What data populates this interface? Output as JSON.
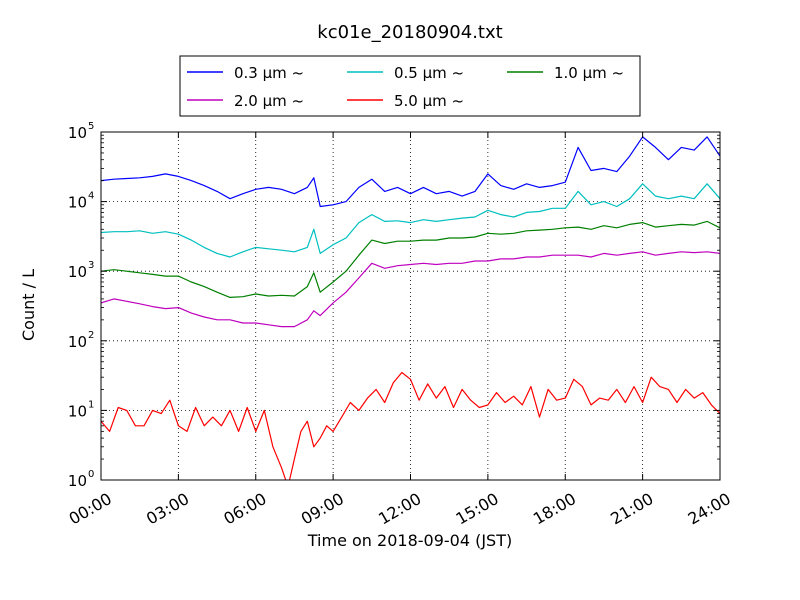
{
  "chart_data": {
    "type": "line",
    "title": "kc01e_20180904.txt",
    "xlabel": "Time on 2018-09-04 (JST)",
    "ylabel": "Count / L",
    "y_scale": "log",
    "ylim": [
      1,
      100000
    ],
    "xlim": [
      "00:00",
      "24:00"
    ],
    "grid": true,
    "legend_position": "top",
    "x_ticks": [
      "00:00",
      "03:00",
      "06:00",
      "09:00",
      "12:00",
      "15:00",
      "18:00",
      "21:00",
      "24:00"
    ],
    "y_ticks": [
      {
        "value": 1,
        "label": "10",
        "exp": "0"
      },
      {
        "value": 10,
        "label": "10",
        "exp": "1"
      },
      {
        "value": 100,
        "label": "10",
        "exp": "2"
      },
      {
        "value": 1000,
        "label": "10",
        "exp": "3"
      },
      {
        "value": 10000,
        "label": "10",
        "exp": "4"
      },
      {
        "value": 100000,
        "label": "10",
        "exp": "5"
      }
    ],
    "series": [
      {
        "name": "0.3 μm ~",
        "color": "#0000ff",
        "points": [
          [
            "00:00",
            20000
          ],
          [
            "00:30",
            21000
          ],
          [
            "01:00",
            21500
          ],
          [
            "01:30",
            22000
          ],
          [
            "02:00",
            23000
          ],
          [
            "02:30",
            25000
          ],
          [
            "03:00",
            23000
          ],
          [
            "03:30",
            20000
          ],
          [
            "04:00",
            17000
          ],
          [
            "04:30",
            14000
          ],
          [
            "05:00",
            11000
          ],
          [
            "05:30",
            13000
          ],
          [
            "06:00",
            15000
          ],
          [
            "06:30",
            16000
          ],
          [
            "07:00",
            15000
          ],
          [
            "07:30",
            13000
          ],
          [
            "08:00",
            16000
          ],
          [
            "08:15",
            22000
          ],
          [
            "08:30",
            8500
          ],
          [
            "09:00",
            9000
          ],
          [
            "09:30",
            10000
          ],
          [
            "10:00",
            16000
          ],
          [
            "10:30",
            21000
          ],
          [
            "11:00",
            14000
          ],
          [
            "11:30",
            16000
          ],
          [
            "12:00",
            13000
          ],
          [
            "12:30",
            16000
          ],
          [
            "13:00",
            13000
          ],
          [
            "13:30",
            14000
          ],
          [
            "14:00",
            12000
          ],
          [
            "14:30",
            14000
          ],
          [
            "15:00",
            25000
          ],
          [
            "15:30",
            17000
          ],
          [
            "16:00",
            15000
          ],
          [
            "16:30",
            18000
          ],
          [
            "17:00",
            16000
          ],
          [
            "17:30",
            17000
          ],
          [
            "18:00",
            19000
          ],
          [
            "18:30",
            60000
          ],
          [
            "19:00",
            28000
          ],
          [
            "19:30",
            30000
          ],
          [
            "20:00",
            27000
          ],
          [
            "20:30",
            45000
          ],
          [
            "21:00",
            85000
          ],
          [
            "21:30",
            60000
          ],
          [
            "22:00",
            40000
          ],
          [
            "22:30",
            60000
          ],
          [
            "23:00",
            55000
          ],
          [
            "23:30",
            85000
          ],
          [
            "24:00",
            45000
          ]
        ]
      },
      {
        "name": "0.5 μm ~",
        "color": "#00bfbf",
        "points": [
          [
            "00:00",
            3600
          ],
          [
            "00:30",
            3700
          ],
          [
            "01:00",
            3700
          ],
          [
            "01:30",
            3800
          ],
          [
            "02:00",
            3500
          ],
          [
            "02:30",
            3700
          ],
          [
            "03:00",
            3400
          ],
          [
            "03:30",
            2800
          ],
          [
            "04:00",
            2200
          ],
          [
            "04:30",
            1800
          ],
          [
            "05:00",
            1600
          ],
          [
            "05:30",
            1900
          ],
          [
            "06:00",
            2200
          ],
          [
            "06:30",
            2100
          ],
          [
            "07:00",
            2000
          ],
          [
            "07:30",
            1900
          ],
          [
            "08:00",
            2200
          ],
          [
            "08:15",
            4000
          ],
          [
            "08:30",
            1800
          ],
          [
            "09:00",
            2400
          ],
          [
            "09:30",
            3000
          ],
          [
            "10:00",
            5000
          ],
          [
            "10:30",
            6500
          ],
          [
            "11:00",
            5200
          ],
          [
            "11:30",
            5300
          ],
          [
            "12:00",
            5000
          ],
          [
            "12:30",
            5500
          ],
          [
            "13:00",
            5200
          ],
          [
            "13:30",
            5500
          ],
          [
            "14:00",
            5800
          ],
          [
            "14:30",
            6000
          ],
          [
            "15:00",
            7500
          ],
          [
            "15:30",
            6500
          ],
          [
            "16:00",
            6000
          ],
          [
            "16:30",
            7000
          ],
          [
            "17:00",
            7200
          ],
          [
            "17:30",
            8000
          ],
          [
            "18:00",
            8000
          ],
          [
            "18:30",
            14000
          ],
          [
            "19:00",
            9000
          ],
          [
            "19:30",
            10000
          ],
          [
            "20:00",
            8500
          ],
          [
            "20:30",
            11000
          ],
          [
            "21:00",
            18000
          ],
          [
            "21:30",
            12000
          ],
          [
            "22:00",
            11000
          ],
          [
            "22:30",
            12000
          ],
          [
            "23:00",
            11000
          ],
          [
            "23:30",
            18000
          ],
          [
            "24:00",
            11000
          ]
        ]
      },
      {
        "name": "1.0 μm ~",
        "color": "#008000",
        "points": [
          [
            "00:00",
            1000
          ],
          [
            "00:30",
            1050
          ],
          [
            "01:00",
            1000
          ],
          [
            "01:30",
            950
          ],
          [
            "02:00",
            900
          ],
          [
            "02:30",
            850
          ],
          [
            "03:00",
            850
          ],
          [
            "03:30",
            700
          ],
          [
            "04:00",
            600
          ],
          [
            "04:30",
            500
          ],
          [
            "05:00",
            420
          ],
          [
            "05:30",
            430
          ],
          [
            "06:00",
            470
          ],
          [
            "06:30",
            440
          ],
          [
            "07:00",
            450
          ],
          [
            "07:30",
            440
          ],
          [
            "08:00",
            600
          ],
          [
            "08:15",
            950
          ],
          [
            "08:30",
            500
          ],
          [
            "09:00",
            700
          ],
          [
            "09:30",
            1000
          ],
          [
            "10:00",
            1700
          ],
          [
            "10:30",
            2800
          ],
          [
            "11:00",
            2500
          ],
          [
            "11:30",
            2700
          ],
          [
            "12:00",
            2700
          ],
          [
            "12:30",
            2800
          ],
          [
            "13:00",
            2800
          ],
          [
            "13:30",
            3000
          ],
          [
            "14:00",
            3000
          ],
          [
            "14:30",
            3100
          ],
          [
            "15:00",
            3500
          ],
          [
            "15:30",
            3400
          ],
          [
            "16:00",
            3500
          ],
          [
            "16:30",
            3800
          ],
          [
            "17:00",
            3900
          ],
          [
            "17:30",
            4000
          ],
          [
            "18:00",
            4200
          ],
          [
            "18:30",
            4300
          ],
          [
            "19:00",
            4000
          ],
          [
            "19:30",
            4500
          ],
          [
            "20:00",
            4200
          ],
          [
            "20:30",
            4700
          ],
          [
            "21:00",
            5000
          ],
          [
            "21:30",
            4300
          ],
          [
            "22:00",
            4500
          ],
          [
            "22:30",
            4700
          ],
          [
            "23:00",
            4600
          ],
          [
            "23:30",
            5200
          ],
          [
            "24:00",
            4200
          ]
        ]
      },
      {
        "name": "2.0 μm ~",
        "color": "#bf00bf",
        "points": [
          [
            "00:00",
            350
          ],
          [
            "00:30",
            400
          ],
          [
            "01:00",
            370
          ],
          [
            "01:30",
            340
          ],
          [
            "02:00",
            310
          ],
          [
            "02:30",
            290
          ],
          [
            "03:00",
            300
          ],
          [
            "03:30",
            250
          ],
          [
            "04:00",
            220
          ],
          [
            "04:30",
            200
          ],
          [
            "05:00",
            200
          ],
          [
            "05:30",
            180
          ],
          [
            "06:00",
            180
          ],
          [
            "06:30",
            170
          ],
          [
            "07:00",
            160
          ],
          [
            "07:30",
            160
          ],
          [
            "08:00",
            200
          ],
          [
            "08:15",
            270
          ],
          [
            "08:30",
            230
          ],
          [
            "09:00",
            350
          ],
          [
            "09:30",
            500
          ],
          [
            "10:00",
            800
          ],
          [
            "10:30",
            1300
          ],
          [
            "11:00",
            1100
          ],
          [
            "11:30",
            1200
          ],
          [
            "12:00",
            1250
          ],
          [
            "12:30",
            1300
          ],
          [
            "13:00",
            1250
          ],
          [
            "13:30",
            1300
          ],
          [
            "14:00",
            1300
          ],
          [
            "14:30",
            1400
          ],
          [
            "15:00",
            1400
          ],
          [
            "15:30",
            1500
          ],
          [
            "16:00",
            1500
          ],
          [
            "16:30",
            1600
          ],
          [
            "17:00",
            1600
          ],
          [
            "17:30",
            1700
          ],
          [
            "18:00",
            1700
          ],
          [
            "18:30",
            1700
          ],
          [
            "19:00",
            1600
          ],
          [
            "19:30",
            1800
          ],
          [
            "20:00",
            1700
          ],
          [
            "20:30",
            1800
          ],
          [
            "21:00",
            1900
          ],
          [
            "21:30",
            1700
          ],
          [
            "22:00",
            1800
          ],
          [
            "22:30",
            1900
          ],
          [
            "23:00",
            1850
          ],
          [
            "23:30",
            1900
          ],
          [
            "24:00",
            1800
          ]
        ]
      },
      {
        "name": "5.0 μm ~",
        "color": "#ff0000",
        "points": [
          [
            "00:00",
            7
          ],
          [
            "00:20",
            5
          ],
          [
            "00:40",
            11
          ],
          [
            "01:00",
            10
          ],
          [
            "01:20",
            6
          ],
          [
            "01:40",
            6
          ],
          [
            "02:00",
            10
          ],
          [
            "02:20",
            9
          ],
          [
            "02:40",
            14
          ],
          [
            "03:00",
            6
          ],
          [
            "03:20",
            5
          ],
          [
            "03:40",
            11
          ],
          [
            "04:00",
            6
          ],
          [
            "04:20",
            8
          ],
          [
            "04:40",
            6
          ],
          [
            "05:00",
            10
          ],
          [
            "05:20",
            5
          ],
          [
            "05:40",
            11
          ],
          [
            "06:00",
            5
          ],
          [
            "06:20",
            10
          ],
          [
            "06:40",
            3
          ],
          [
            "07:00",
            1.5
          ],
          [
            "07:15",
            0.8
          ],
          [
            "07:30",
            2
          ],
          [
            "07:45",
            5
          ],
          [
            "08:00",
            7
          ],
          [
            "08:15",
            3
          ],
          [
            "08:30",
            4
          ],
          [
            "08:45",
            6
          ],
          [
            "09:00",
            5
          ],
          [
            "09:20",
            8
          ],
          [
            "09:40",
            13
          ],
          [
            "10:00",
            10
          ],
          [
            "10:20",
            15
          ],
          [
            "10:40",
            20
          ],
          [
            "11:00",
            13
          ],
          [
            "11:20",
            25
          ],
          [
            "11:40",
            35
          ],
          [
            "12:00",
            28
          ],
          [
            "12:20",
            14
          ],
          [
            "12:40",
            24
          ],
          [
            "13:00",
            15
          ],
          [
            "13:20",
            22
          ],
          [
            "13:40",
            11
          ],
          [
            "14:00",
            20
          ],
          [
            "14:20",
            14
          ],
          [
            "14:40",
            11
          ],
          [
            "15:00",
            12
          ],
          [
            "15:20",
            18
          ],
          [
            "15:40",
            13
          ],
          [
            "16:00",
            16
          ],
          [
            "16:20",
            12
          ],
          [
            "16:40",
            22
          ],
          [
            "17:00",
            8
          ],
          [
            "17:20",
            20
          ],
          [
            "17:40",
            14
          ],
          [
            "18:00",
            15
          ],
          [
            "18:20",
            28
          ],
          [
            "18:40",
            22
          ],
          [
            "19:00",
            12
          ],
          [
            "19:20",
            15
          ],
          [
            "19:40",
            14
          ],
          [
            "20:00",
            20
          ],
          [
            "20:20",
            13
          ],
          [
            "20:40",
            22
          ],
          [
            "21:00",
            13
          ],
          [
            "21:20",
            30
          ],
          [
            "21:40",
            22
          ],
          [
            "22:00",
            20
          ],
          [
            "22:20",
            13
          ],
          [
            "22:40",
            20
          ],
          [
            "23:00",
            15
          ],
          [
            "23:20",
            18
          ],
          [
            "23:40",
            12
          ],
          [
            "24:00",
            9
          ]
        ]
      }
    ]
  }
}
